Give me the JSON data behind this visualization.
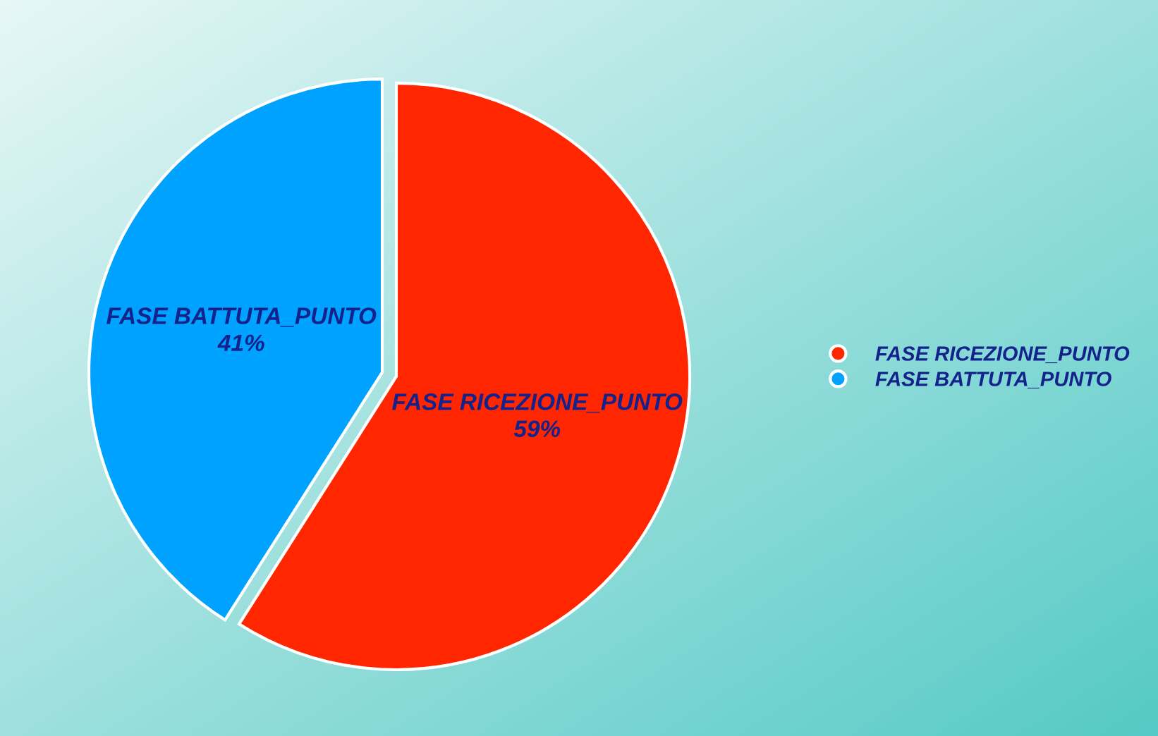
{
  "chart_data": {
    "type": "pie",
    "categories": [
      "FASE RICEZIONE_PUNTO",
      "FASE BATTUTA_PUNTO"
    ],
    "values": [
      59,
      41
    ],
    "colors": [
      "#ff2600",
      "#00a2ff"
    ],
    "value_labels": [
      "59%",
      "41%"
    ],
    "legend": "right"
  }
}
